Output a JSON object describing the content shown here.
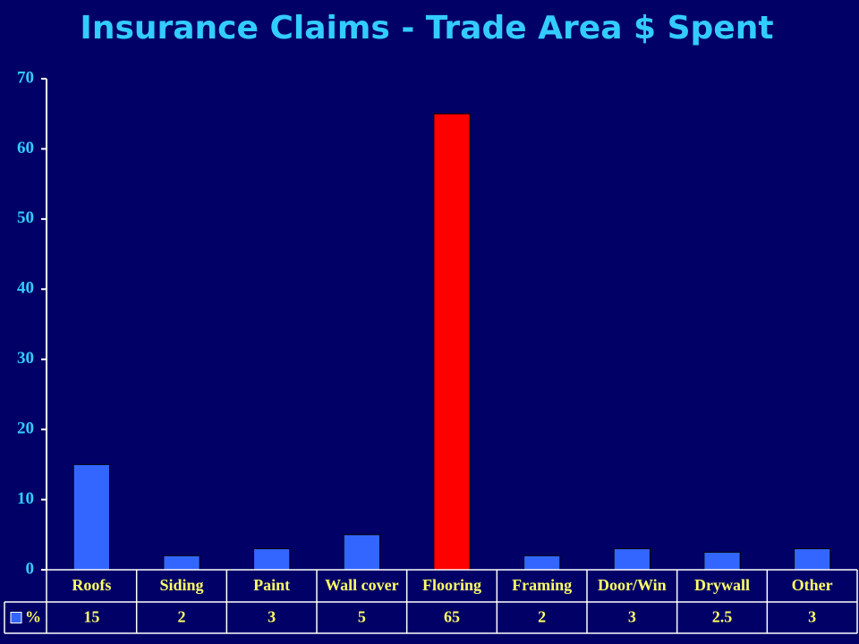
{
  "chart_data": {
    "type": "bar",
    "title": "Insurance Claims - Trade Area $ Spent",
    "categories": [
      "Roofs",
      "Siding",
      "Paint",
      "Wall cover",
      "Flooring",
      "Framing",
      "Door/Win",
      "Drywall",
      "Other"
    ],
    "series": [
      {
        "name": "%",
        "color": "#3366ff",
        "bar_colors": [
          "#3366ff",
          "#3366ff",
          "#3366ff",
          "#3366ff",
          "#ff0000",
          "#3366ff",
          "#3366ff",
          "#3366ff",
          "#3366ff"
        ],
        "values": [
          15,
          2,
          3,
          5,
          65,
          2,
          3,
          2.5,
          3
        ]
      }
    ],
    "ylim": [
      0,
      70
    ],
    "yticks": [
      0,
      10,
      20,
      30,
      40,
      50,
      60,
      70
    ],
    "data_table": true
  }
}
